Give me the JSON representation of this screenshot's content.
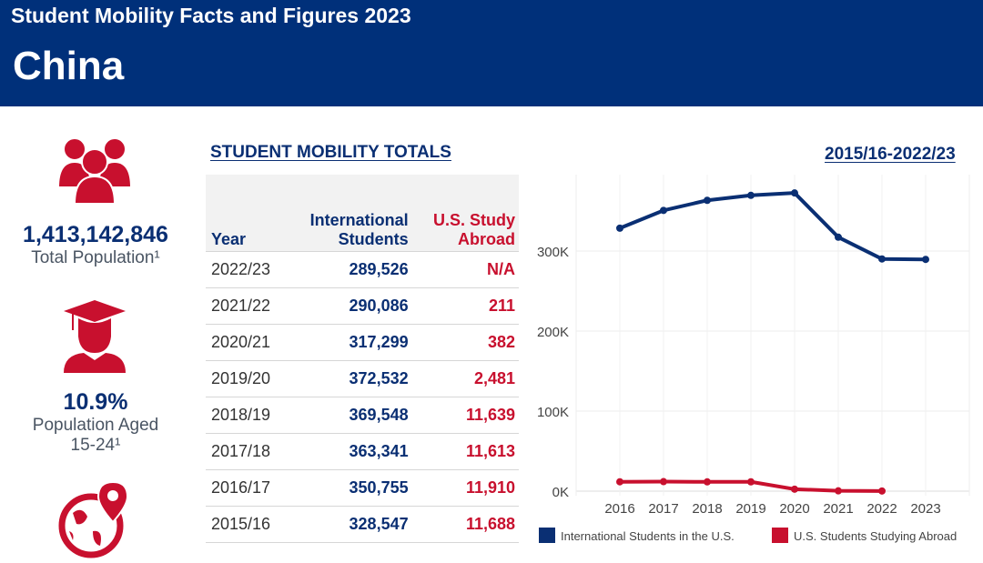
{
  "header": {
    "subtitle": "Student Mobility Facts and Figures 2023",
    "country": "China"
  },
  "stats": [
    {
      "icon": "people-group-icon",
      "value": "1,413,142,846",
      "label": "Total Population¹"
    },
    {
      "icon": "graduate-icon",
      "value": "10.9%",
      "label": "Population Aged",
      "label2": "15-24¹"
    },
    {
      "icon": "globe-location-icon"
    }
  ],
  "table": {
    "title": "STUDENT MOBILITY TOTALS",
    "headers": {
      "year": "Year",
      "intl1": "International",
      "intl2": "Students",
      "us1": "U.S. Study",
      "us2": "Abroad"
    },
    "rows": [
      {
        "year": "2022/23",
        "intl": "289,526",
        "us": "N/A"
      },
      {
        "year": "2021/22",
        "intl": "290,086",
        "us": "211"
      },
      {
        "year": "2020/21",
        "intl": "317,299",
        "us": "382"
      },
      {
        "year": "2019/20",
        "intl": "372,532",
        "us": "2,481"
      },
      {
        "year": "2018/19",
        "intl": "369,548",
        "us": "11,639"
      },
      {
        "year": "2017/18",
        "intl": "363,341",
        "us": "11,613"
      },
      {
        "year": "2016/17",
        "intl": "350,755",
        "us": "11,910"
      },
      {
        "year": "2015/16",
        "intl": "328,547",
        "us": "11,688"
      }
    ]
  },
  "colors": {
    "navy": "#0a2f73",
    "red": "#c8102e",
    "header_bg": "#00307a"
  },
  "chart_data": {
    "type": "line",
    "title": "2015/16-2022/23",
    "x": [
      "2016",
      "2017",
      "2018",
      "2019",
      "2020",
      "2021",
      "2022",
      "2023"
    ],
    "yticks": [
      "0K",
      "100K",
      "200K",
      "300K"
    ],
    "ylim": [
      0,
      400000
    ],
    "grid": true,
    "legend_placement": "bottom",
    "series": [
      {
        "name": "International Students in the U.S.",
        "color": "#0a2f73",
        "values": [
          328547,
          350755,
          363341,
          369548,
          372532,
          317299,
          290086,
          289526
        ]
      },
      {
        "name": "U.S. Students Studying Abroad",
        "color": "#c8102e",
        "values": [
          11688,
          11910,
          11613,
          11639,
          2481,
          382,
          211,
          null
        ]
      }
    ]
  }
}
